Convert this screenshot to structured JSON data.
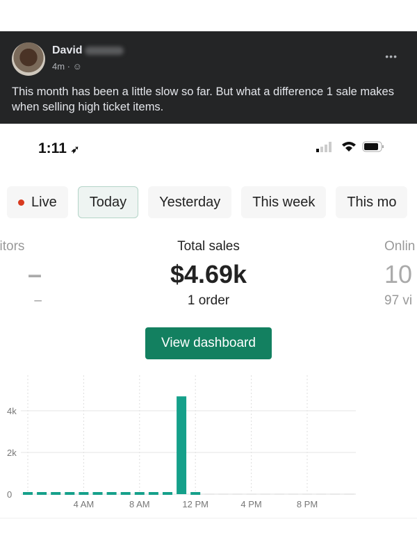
{
  "post": {
    "author": "David",
    "time": "4m",
    "privacy_icon": "friends-icon",
    "more_icon": "more-dots-icon",
    "text": "This month has been a little slow so far. But what a difference 1 sale makes when selling high ticket items."
  },
  "phone": {
    "time": "1:11",
    "icons": [
      "location-arrow-icon",
      "signal-icon",
      "wifi-icon",
      "battery-icon"
    ]
  },
  "tabs": [
    {
      "label": "Live",
      "live": true
    },
    {
      "label": "Today",
      "active": true
    },
    {
      "label": "Yesterday"
    },
    {
      "label": "This week"
    },
    {
      "label": "This mo"
    }
  ],
  "metrics": {
    "left": {
      "label": "sitors",
      "value": "–",
      "sub": "–"
    },
    "center": {
      "label": "Total sales",
      "value": "$4.69k",
      "sub": "1 order"
    },
    "right": {
      "label": "Onlin",
      "value": "10",
      "sub": "97 vi"
    }
  },
  "button": {
    "label": "View dashboard"
  },
  "colors": {
    "accent": "#138060",
    "bar": "#15a08a",
    "live": "#d83a1f",
    "post_bg": "#242526"
  },
  "chart_data": {
    "type": "bar",
    "x": [
      0,
      1,
      2,
      3,
      4,
      5,
      6,
      7,
      8,
      9,
      10,
      11,
      12,
      13,
      14,
      15,
      16,
      17,
      18,
      19,
      20,
      21,
      22,
      23
    ],
    "values": [
      0,
      0,
      0,
      0,
      0,
      0,
      0,
      0,
      0,
      0,
      0,
      4690,
      0,
      null,
      null,
      null,
      null,
      null,
      null,
      null,
      null,
      null,
      null,
      null
    ],
    "x_ticks": [
      {
        "hour": 4,
        "label": "4 AM"
      },
      {
        "hour": 8,
        "label": "8 AM"
      },
      {
        "hour": 12,
        "label": "12 PM"
      },
      {
        "hour": 16,
        "label": "4 PM"
      },
      {
        "hour": 20,
        "label": "8 PM"
      }
    ],
    "y_ticks": [
      {
        "value": 0,
        "label": "0"
      },
      {
        "value": 2000,
        "label": "2k"
      },
      {
        "value": 4000,
        "label": "4k"
      }
    ],
    "ylim": [
      0,
      4000
    ],
    "grid": true
  }
}
